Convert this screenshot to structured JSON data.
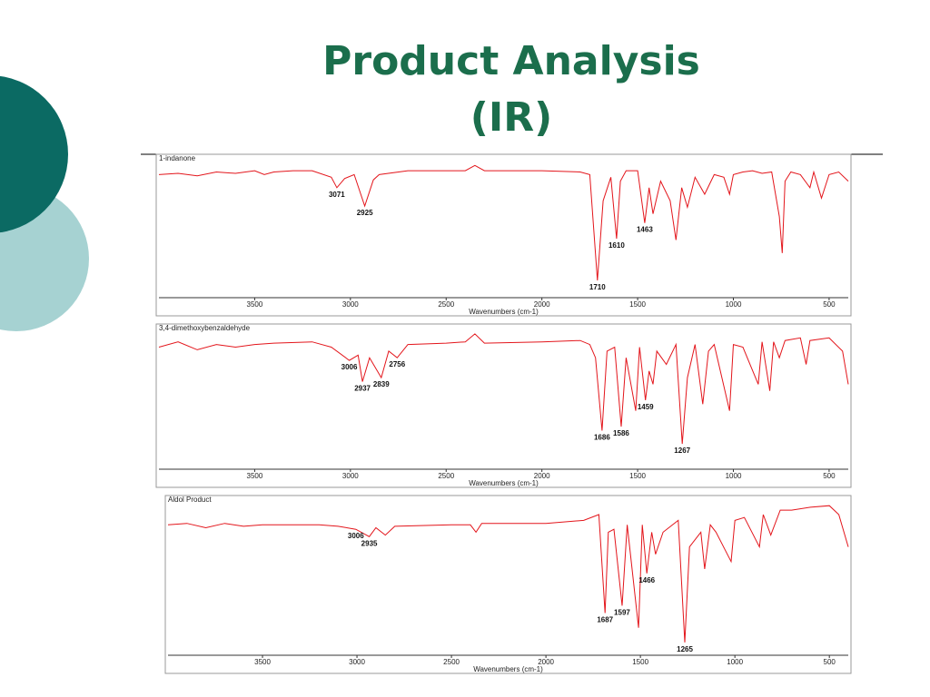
{
  "slide": {
    "title": [
      "Product Analysis",
      "(IR)"
    ]
  },
  "chart_data": [
    {
      "type": "line",
      "title": "1-indanone",
      "xlabel": "Wavenumbers (cm-1)",
      "color": "#e3151b",
      "xlim": [
        4000,
        400
      ],
      "ylim": [
        0,
        100
      ],
      "xticks": [
        3500,
        3000,
        2500,
        2000,
        1500,
        1000,
        500
      ],
      "peaks": [
        3071,
        2925,
        1710,
        1610,
        1463
      ],
      "x": [
        4000,
        3900,
        3800,
        3700,
        3600,
        3500,
        3450,
        3400,
        3300,
        3200,
        3100,
        3071,
        3030,
        2980,
        2925,
        2880,
        2850,
        2700,
        2500,
        2400,
        2350,
        2300,
        2000,
        1800,
        1750,
        1710,
        1680,
        1640,
        1610,
        1590,
        1560,
        1500,
        1463,
        1440,
        1420,
        1380,
        1330,
        1300,
        1270,
        1240,
        1200,
        1150,
        1100,
        1050,
        1020,
        1000,
        950,
        900,
        850,
        800,
        760,
        745,
        730,
        700,
        650,
        600,
        580,
        540,
        500,
        450,
        400
      ],
      "values": [
        90,
        91,
        89,
        92,
        91,
        93,
        90,
        92,
        93,
        93,
        88,
        80,
        87,
        90,
        66,
        86,
        90,
        93,
        93,
        93,
        97,
        93,
        93,
        92,
        90,
        9,
        70,
        88,
        41,
        85,
        93,
        93,
        53,
        80,
        60,
        85,
        70,
        40,
        80,
        65,
        88,
        75,
        90,
        88,
        75,
        90,
        92,
        93,
        91,
        92,
        58,
        30,
        85,
        92,
        90,
        80,
        92,
        72,
        90,
        92,
        85
      ]
    },
    {
      "type": "line",
      "title": "3,4-dimethoxybenzaldehyde",
      "xlabel": "Wavenumbers (cm-1)",
      "color": "#e3151b",
      "xlim": [
        4000,
        400
      ],
      "ylim": [
        0,
        100
      ],
      "xticks": [
        3500,
        3000,
        2500,
        2000,
        1500,
        1000,
        500
      ],
      "peaks": [
        3006,
        2937,
        2839,
        2756,
        1686,
        1586,
        1459,
        1267
      ],
      "x": [
        4000,
        3900,
        3800,
        3700,
        3600,
        3500,
        3400,
        3200,
        3100,
        3006,
        2960,
        2937,
        2900,
        2839,
        2800,
        2756,
        2700,
        2500,
        2400,
        2350,
        2300,
        2000,
        1800,
        1750,
        1720,
        1686,
        1660,
        1620,
        1586,
        1560,
        1510,
        1490,
        1459,
        1440,
        1420,
        1400,
        1350,
        1300,
        1267,
        1240,
        1200,
        1160,
        1130,
        1100,
        1020,
        1000,
        950,
        870,
        850,
        810,
        790,
        760,
        730,
        650,
        620,
        600,
        500,
        430,
        400
      ],
      "values": [
        88,
        92,
        86,
        90,
        88,
        90,
        91,
        92,
        88,
        78,
        82,
        62,
        80,
        65,
        85,
        80,
        90,
        91,
        92,
        98,
        91,
        92,
        93,
        90,
        80,
        25,
        85,
        88,
        28,
        80,
        40,
        88,
        48,
        70,
        60,
        85,
        75,
        90,
        15,
        65,
        90,
        45,
        85,
        90,
        40,
        90,
        88,
        60,
        92,
        55,
        92,
        80,
        93,
        95,
        75,
        93,
        95,
        85,
        60
      ]
    },
    {
      "type": "line",
      "title": "Aldol Product",
      "xlabel": "Wavenumbers (cm-1)",
      "color": "#e3151b",
      "xlim": [
        4000,
        400
      ],
      "ylim": [
        0,
        100
      ],
      "xticks": [
        3500,
        3000,
        2500,
        2000,
        1500,
        1000,
        500
      ],
      "peaks": [
        3006,
        2935,
        1687,
        1597,
        1466,
        1265
      ],
      "x": [
        4000,
        3900,
        3800,
        3700,
        3600,
        3500,
        3400,
        3200,
        3100,
        3006,
        2935,
        2900,
        2850,
        2800,
        2500,
        2400,
        2370,
        2340,
        2000,
        1800,
        1720,
        1687,
        1670,
        1640,
        1597,
        1570,
        1510,
        1490,
        1466,
        1440,
        1420,
        1380,
        1300,
        1265,
        1240,
        1180,
        1160,
        1130,
        1100,
        1020,
        1000,
        950,
        870,
        850,
        810,
        760,
        700,
        600,
        500,
        450,
        400
      ],
      "values": [
        85,
        86,
        83,
        86,
        84,
        85,
        85,
        85,
        84,
        82,
        77,
        83,
        78,
        84,
        85,
        85,
        80,
        86,
        86,
        88,
        92,
        25,
        80,
        82,
        30,
        85,
        15,
        85,
        52,
        80,
        65,
        80,
        88,
        5,
        70,
        80,
        55,
        85,
        80,
        60,
        88,
        90,
        70,
        92,
        78,
        95,
        95,
        97,
        98,
        92,
        70
      ]
    }
  ]
}
